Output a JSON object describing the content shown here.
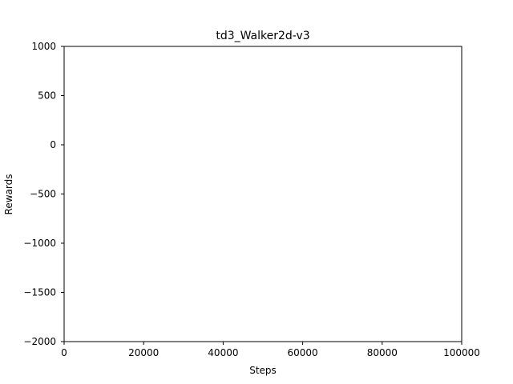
{
  "chart_data": {
    "type": "line",
    "title": "td3_Walker2d-v3",
    "xlabel": "Steps",
    "ylabel": "Rewards",
    "xlim": [
      0,
      100000
    ],
    "ylim": [
      -2000,
      1000
    ],
    "x_ticks": [
      0,
      20000,
      40000,
      60000,
      80000,
      100000
    ],
    "x_tick_labels": [
      "0",
      "20000",
      "40000",
      "60000",
      "80000",
      "100000"
    ],
    "y_ticks": [
      -2000,
      -1500,
      -1000,
      -500,
      0,
      500,
      1000
    ],
    "y_tick_labels": [
      "−2000",
      "−1500",
      "−1000",
      "−500",
      "0",
      "500",
      "1000"
    ],
    "grid": false,
    "series": []
  }
}
